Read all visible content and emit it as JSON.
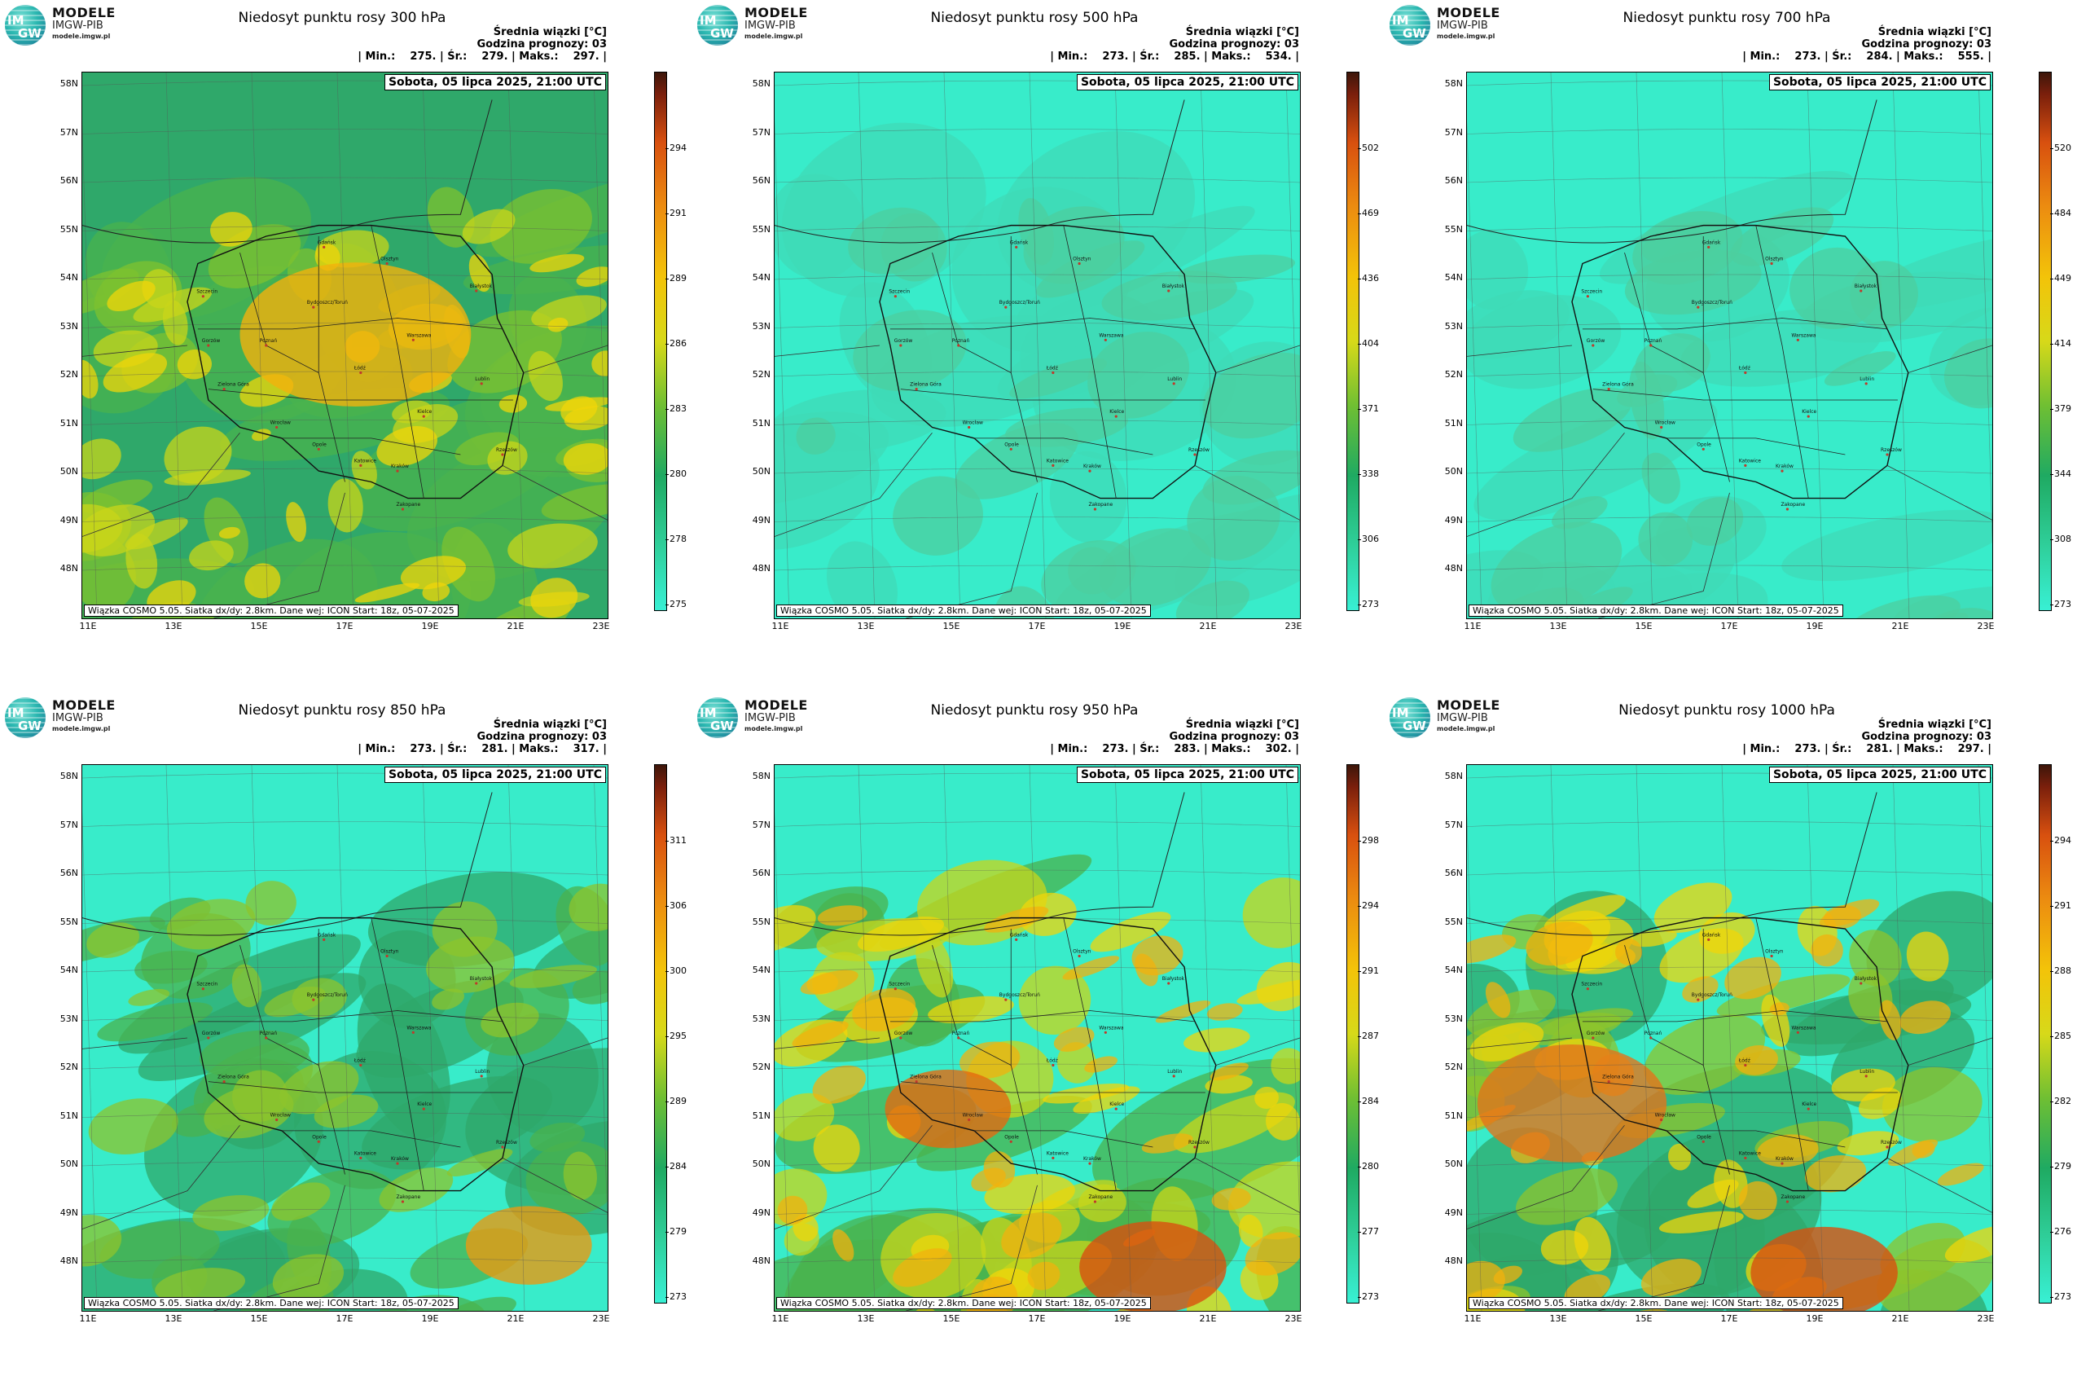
{
  "logo": {
    "name": "MODELE",
    "sub": "IMGW-PIB",
    "url": "modele.imgw.pl",
    "mark_top": "IM",
    "mark_bottom": "GW"
  },
  "common": {
    "subtitle": "Średnia wiązki [°C]",
    "forecast_hour": "Godzina prognozy: 03",
    "date": "Sobota, 05 lipca 2025, 21:00 UTC",
    "footer": "Wiązka COSMO 5.05. Siatka dx/dy: 2.8km. Dane wej: ICON Start: 18z, 05-07-2025",
    "lat_labels": [
      "58N",
      "57N",
      "56N",
      "55N",
      "54N",
      "53N",
      "52N",
      "51N",
      "50N",
      "49N",
      "48N"
    ],
    "lon_labels": [
      "11E",
      "13E",
      "15E",
      "17E",
      "19E",
      "21E",
      "23E"
    ]
  },
  "panels": [
    {
      "title": "Niedosyt punktu rosy 300 hPa",
      "stats": "| Min.:    275. | Śr.:    279. | Maks.:    297. |",
      "min": 275,
      "mean": 279,
      "max": 297,
      "colorbar_ticks": [
        "294",
        "291",
        "289",
        "286",
        "283",
        "280",
        "278",
        "275"
      ],
      "field_colors": [
        "#2fa86a",
        "#49b34d",
        "#7ec22f",
        "#c9d61a",
        "#f0d60a"
      ],
      "hot": [
        [
          "#f2b20d",
          0.52,
          0.48,
          0.22
        ]
      ]
    },
    {
      "title": "Niedosyt punktu rosy 500 hPa",
      "stats": "| Min.:    273. | Śr.:    285. | Maks.:    534. |",
      "min": 273,
      "mean": 285,
      "max": 534,
      "colorbar_ticks": [
        "502",
        "469",
        "436",
        "404",
        "371",
        "338",
        "306",
        "273"
      ],
      "field_colors": [
        "#38ecca",
        "#3fdbb7",
        "#4ccf9f"
      ],
      "hot": []
    },
    {
      "title": "Niedosyt punktu rosy 700 hPa",
      "stats": "| Min.:    273. | Śr.:    284. | Maks.:    555. |",
      "min": 273,
      "mean": 284,
      "max": 555,
      "colorbar_ticks": [
        "520",
        "484",
        "449",
        "414",
        "379",
        "344",
        "308",
        "273"
      ],
      "field_colors": [
        "#38ecca",
        "#3fdbb7",
        "#4ccf9f"
      ],
      "hot": []
    },
    {
      "title": "Niedosyt punktu rosy 850 hPa",
      "stats": "| Min.:    273. | Śr.:    281. | Maks.:    317. |",
      "min": 273,
      "mean": 281,
      "max": 317,
      "colorbar_ticks": [
        "311",
        "306",
        "300",
        "295",
        "289",
        "284",
        "279",
        "273"
      ],
      "field_colors": [
        "#38ecca",
        "#2fa86a",
        "#49b34d",
        "#8ec42c"
      ],
      "hot": [
        [
          "#e89a12",
          0.85,
          0.88,
          0.12
        ]
      ]
    },
    {
      "title": "Niedosyt punktu rosy 950 hPa",
      "stats": "| Min.:    273. | Śr.:    283. | Maks.:    302. |",
      "min": 273,
      "mean": 283,
      "max": 302,
      "colorbar_ticks": [
        "298",
        "294",
        "291",
        "287",
        "284",
        "280",
        "277",
        "273"
      ],
      "field_colors": [
        "#38ecca",
        "#49b34d",
        "#c9d61a",
        "#f0d60a",
        "#f2b20d"
      ],
      "hot": [
        [
          "#e26a10",
          0.33,
          0.63,
          0.12
        ],
        [
          "#d8500f",
          0.72,
          0.92,
          0.14
        ]
      ]
    },
    {
      "title": "Niedosyt punktu rosy 1000 hPa",
      "stats": "| Min.:    273. | Śr.:    281. | Maks.:    297. |",
      "min": 273,
      "mean": 281,
      "max": 297,
      "colorbar_ticks": [
        "294",
        "291",
        "288",
        "285",
        "282",
        "279",
        "276",
        "273"
      ],
      "field_colors": [
        "#38ecca",
        "#2fa86a",
        "#8ec42c",
        "#f0d60a",
        "#f2b20d"
      ],
      "hot": [
        [
          "#e2741a",
          0.2,
          0.62,
          0.18
        ],
        [
          "#d8500f",
          0.68,
          0.93,
          0.14
        ]
      ]
    }
  ],
  "cities": [
    "Gdańsk",
    "Olsztyn",
    "Szczecin",
    "Bydgoszcz/Toruń",
    "Białystok",
    "Gorzów",
    "Poznań",
    "Warszawa",
    "Zielona Góra",
    "Łódź",
    "Lublin",
    "Wrocław",
    "Kielce",
    "Opole",
    "Rzeszów",
    "Katowice",
    "Kraków",
    "Zakopane"
  ]
}
